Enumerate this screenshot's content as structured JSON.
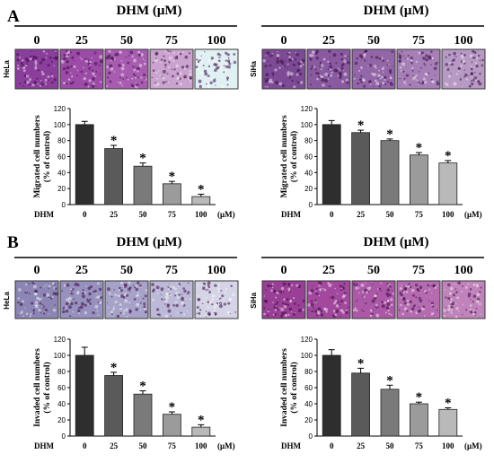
{
  "figure": {
    "panel_labels": [
      "A",
      "B"
    ],
    "header": "DHM (μM)",
    "doses": [
      "0",
      "25",
      "50",
      "75",
      "100"
    ],
    "colors": {
      "well_migration_hela": [
        "#8a3d9a",
        "#9b4ba6",
        "#a65aae",
        "#c79fcb",
        "#dff0f2"
      ],
      "bar_fills": [
        "#2e2e2e",
        "#5a5a5a",
        "#7a7a7a",
        "#9b9b9b",
        "#b9b9b9"
      ]
    }
  },
  "panels": [
    {
      "id": "A-HeLa",
      "panel": "A",
      "cell_line": "HeLa",
      "image_tone": [
        "#8b3e9c",
        "#9c4ca7",
        "#a75cb0",
        "#caa4cf",
        "#e0f0f3"
      ]
    },
    {
      "id": "A-SiHa",
      "panel": "A",
      "cell_line": "SiHa",
      "image_tone": [
        "#7d4b95",
        "#8a5aa0",
        "#9366a8",
        "#a57fb6",
        "#b79ac4"
      ]
    },
    {
      "id": "B-HeLa",
      "panel": "B",
      "cell_line": "HeLa",
      "image_tone": [
        "#8c86b4",
        "#9691bd",
        "#a7a3c8",
        "#bcbad7",
        "#d4d4e6"
      ]
    },
    {
      "id": "B-SiHa",
      "panel": "B",
      "cell_line": "SiHa",
      "image_tone": [
        "#9a3f96",
        "#a2489d",
        "#ab58a6",
        "#b56bb0",
        "#c083bb"
      ]
    }
  ],
  "chart_data": [
    {
      "type": "bar",
      "id": "A-HeLa",
      "ylabel": "Migrated cell numbers\n(% of control)",
      "xlabel_left": "DHM",
      "xunit": "(μM)",
      "categories": [
        "0",
        "25",
        "50",
        "75",
        "100"
      ],
      "values": [
        100,
        70,
        48,
        26,
        10
      ],
      "errors": [
        4,
        4,
        4,
        3,
        3
      ],
      "significant": [
        false,
        true,
        true,
        true,
        true
      ],
      "ylim": [
        0,
        120
      ],
      "yticks": [
        0,
        20,
        40,
        60,
        80,
        100,
        120
      ],
      "grid": false
    },
    {
      "type": "bar",
      "id": "A-SiHa",
      "ylabel": "Migrated cell numbers\n(% of control)",
      "xlabel_left": "DHM",
      "xunit": "(μM)",
      "categories": [
        "0",
        "25",
        "50",
        "75",
        "100"
      ],
      "values": [
        100,
        90,
        80,
        62,
        52
      ],
      "errors": [
        5,
        3,
        2,
        3,
        3
      ],
      "significant": [
        false,
        true,
        true,
        true,
        true
      ],
      "ylim": [
        0,
        120
      ],
      "yticks": [
        0,
        20,
        40,
        60,
        80,
        100,
        120
      ],
      "grid": false
    },
    {
      "type": "bar",
      "id": "B-HeLa",
      "ylabel": "Invaded cell numbers\n(% of control)",
      "xlabel_left": "DHM",
      "xunit": "(μM)",
      "categories": [
        "0",
        "25",
        "50",
        "75",
        "100"
      ],
      "values": [
        100,
        75,
        52,
        27,
        11
      ],
      "errors": [
        10,
        4,
        4,
        3,
        3
      ],
      "significant": [
        false,
        true,
        true,
        true,
        true
      ],
      "ylim": [
        0,
        120
      ],
      "yticks": [
        0,
        20,
        40,
        60,
        80,
        100,
        120
      ],
      "grid": false
    },
    {
      "type": "bar",
      "id": "B-SiHa",
      "ylabel": "Invaded cell numbers\n(% of control)",
      "xlabel_left": "DHM",
      "xunit": "(μM)",
      "categories": [
        "0",
        "25",
        "50",
        "75",
        "100"
      ],
      "values": [
        100,
        78,
        58,
        40,
        33
      ],
      "errors": [
        7,
        6,
        5,
        2,
        2
      ],
      "significant": [
        false,
        true,
        true,
        true,
        true
      ],
      "ylim": [
        0,
        120
      ],
      "yticks": [
        0,
        20,
        40,
        60,
        80,
        100,
        120
      ],
      "grid": false
    }
  ]
}
